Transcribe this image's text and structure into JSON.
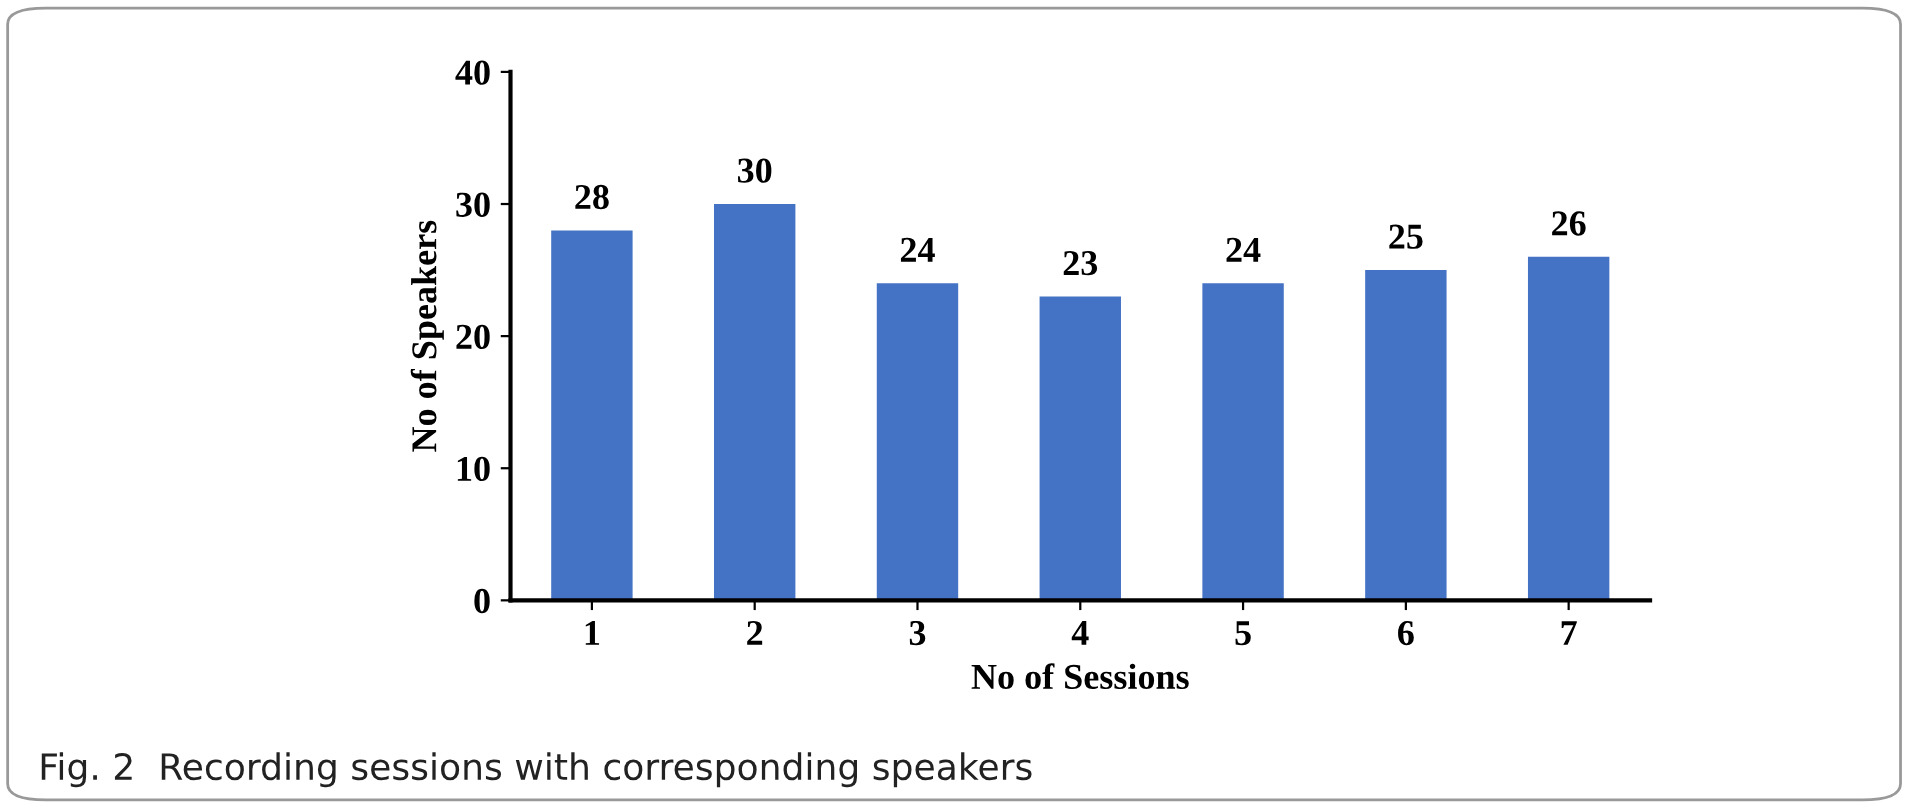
{
  "chart_data": {
    "type": "bar",
    "xlabel": "No of Sessions",
    "ylabel": "No of Speakers",
    "categories": [
      "1",
      "2",
      "3",
      "4",
      "5",
      "6",
      "7"
    ],
    "values": [
      28,
      30,
      24,
      23,
      24,
      25,
      26
    ],
    "color": "#4472c4",
    "ylim": [
      0,
      40
    ],
    "yticks": [
      0,
      10,
      20,
      30,
      40
    ],
    "data_labels": true,
    "grid": false,
    "legend": false,
    "annotations": [
      "Fig. 2  Recording sessions with corresponding speakers"
    ]
  }
}
